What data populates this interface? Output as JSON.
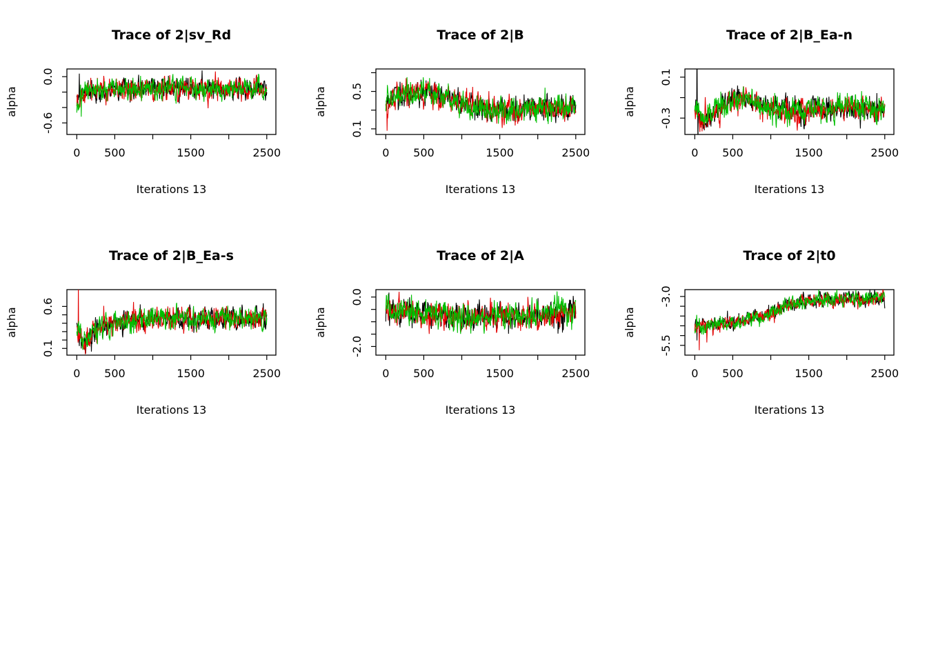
{
  "page": {
    "background": "#ffffff"
  },
  "palette": {
    "chain1": "#000000",
    "chain2": "#e30000",
    "chain3": "#00bf00"
  },
  "chart_data": [
    {
      "type": "line",
      "title": "Trace of 2|sv_Rd",
      "xlabel": "Iterations 13",
      "ylabel": "alpha",
      "xlim": [
        -130,
        2620
      ],
      "ylim": [
        -0.75,
        0.1
      ],
      "grid": false,
      "legend": null,
      "xticks": {
        "values": [
          0,
          500,
          1000,
          1500,
          2000,
          2500
        ],
        "labels": [
          "0",
          "500",
          "",
          "1500",
          "",
          "2500"
        ]
      },
      "yticks": {
        "values": [
          -0.6,
          -0.4,
          -0.2,
          0.0
        ],
        "labels": [
          "-0.6",
          "",
          "",
          "0.0"
        ]
      },
      "mean_path": [
        [
          0,
          -0.3
        ],
        [
          120,
          -0.17
        ],
        [
          1200,
          -0.14
        ],
        [
          2500,
          -0.16
        ]
      ],
      "noise_sd": 0.062,
      "chains": [
        {
          "name": "chain-1",
          "color": "#000000",
          "seed": 11,
          "spikes": [
            [
              35,
              0.04
            ]
          ]
        },
        {
          "name": "chain-2",
          "color": "#e30000",
          "seed": 12,
          "spikes": []
        },
        {
          "name": "chain-3",
          "color": "#00bf00",
          "seed": 13,
          "spikes": [
            [
              60,
              -0.52
            ]
          ]
        }
      ]
    },
    {
      "type": "line",
      "title": "Trace of 2|B",
      "xlabel": "Iterations 13",
      "ylabel": "alpha",
      "xlim": [
        -130,
        2620
      ],
      "ylim": [
        0.04,
        0.74
      ],
      "grid": false,
      "legend": null,
      "xticks": {
        "values": [
          0,
          500,
          1000,
          1500,
          2000,
          2500
        ],
        "labels": [
          "0",
          "500",
          "",
          "1500",
          "",
          "2500"
        ]
      },
      "yticks": {
        "values": [
          0.1,
          0.3,
          0.5,
          0.7
        ],
        "labels": [
          "0.1",
          "",
          "0.5",
          ""
        ]
      },
      "mean_path": [
        [
          0,
          0.4
        ],
        [
          150,
          0.47
        ],
        [
          550,
          0.48
        ],
        [
          950,
          0.4
        ],
        [
          1300,
          0.31
        ],
        [
          1750,
          0.3
        ],
        [
          2100,
          0.34
        ],
        [
          2500,
          0.32
        ]
      ],
      "noise_sd": 0.058,
      "chains": [
        {
          "name": "chain-1",
          "color": "#000000",
          "seed": 21,
          "spikes": []
        },
        {
          "name": "chain-2",
          "color": "#e30000",
          "seed": 22,
          "spikes": [
            [
              15,
              0.08
            ]
          ]
        },
        {
          "name": "chain-3",
          "color": "#00bf00",
          "seed": 23,
          "spikes": []
        }
      ]
    },
    {
      "type": "line",
      "title": "Trace of 2|B_Ea-n",
      "xlabel": "Iterations 13",
      "ylabel": "alpha",
      "xlim": [
        -130,
        2620
      ],
      "ylim": [
        -0.46,
        0.18
      ],
      "grid": false,
      "legend": null,
      "xticks": {
        "values": [
          0,
          500,
          1000,
          1500,
          2000,
          2500
        ],
        "labels": [
          "0",
          "500",
          "",
          "1500",
          "",
          "2500"
        ]
      },
      "yticks": {
        "values": [
          -0.3,
          -0.1,
          0.1
        ],
        "labels": [
          "-0.3",
          "",
          "0.1"
        ]
      },
      "mean_path": [
        [
          0,
          -0.24
        ],
        [
          130,
          -0.31
        ],
        [
          380,
          -0.17
        ],
        [
          650,
          -0.1
        ],
        [
          950,
          -0.2
        ],
        [
          1400,
          -0.23
        ],
        [
          1800,
          -0.19
        ],
        [
          2500,
          -0.21
        ]
      ],
      "noise_sd": 0.055,
      "chains": [
        {
          "name": "chain-1",
          "color": "#000000",
          "seed": 31,
          "spikes": [
            [
              30,
              0.5
            ],
            [
              42,
              -0.6
            ]
          ]
        },
        {
          "name": "chain-2",
          "color": "#e30000",
          "seed": 32,
          "spikes": [
            [
              95,
              -0.43
            ]
          ]
        },
        {
          "name": "chain-3",
          "color": "#00bf00",
          "seed": 33,
          "spikes": []
        }
      ]
    },
    {
      "type": "line",
      "title": "Trace of 2|B_Ea-s",
      "xlabel": "Iterations 13",
      "ylabel": "alpha",
      "xlim": [
        -130,
        2620
      ],
      "ylim": [
        0.02,
        0.8
      ],
      "grid": false,
      "legend": null,
      "xticks": {
        "values": [
          0,
          500,
          1000,
          1500,
          2000,
          2500
        ],
        "labels": [
          "0",
          "500",
          "",
          "1500",
          "",
          "2500"
        ]
      },
      "yticks": {
        "values": [
          0.1,
          0.2,
          0.3,
          0.4,
          0.5,
          0.6
        ],
        "labels": [
          "0.1",
          "",
          "",
          "",
          "",
          "0.6"
        ]
      },
      "mean_path": [
        [
          0,
          0.33
        ],
        [
          95,
          0.16
        ],
        [
          300,
          0.35
        ],
        [
          700,
          0.43
        ],
        [
          1250,
          0.47
        ],
        [
          2000,
          0.45
        ],
        [
          2500,
          0.45
        ]
      ],
      "noise_sd": 0.06,
      "chains": [
        {
          "name": "chain-1",
          "color": "#000000",
          "seed": 41,
          "spikes": [
            [
              60,
              0.1
            ]
          ]
        },
        {
          "name": "chain-2",
          "color": "#e30000",
          "seed": 42,
          "spikes": [
            [
              20,
              0.85
            ]
          ]
        },
        {
          "name": "chain-3",
          "color": "#00bf00",
          "seed": 43,
          "spikes": []
        }
      ]
    },
    {
      "type": "line",
      "title": "Trace of 2|A",
      "xlabel": "Iterations 13",
      "ylabel": "alpha",
      "xlim": [
        -130,
        2620
      ],
      "ylim": [
        -2.35,
        0.3
      ],
      "grid": false,
      "legend": null,
      "xticks": {
        "values": [
          0,
          500,
          1000,
          1500,
          2000,
          2500
        ],
        "labels": [
          "0",
          "500",
          "",
          "1500",
          "",
          "2500"
        ]
      },
      "yticks": {
        "values": [
          -2.0,
          -1.5,
          -1.0,
          -0.5,
          0.0
        ],
        "labels": [
          "-2.0",
          "",
          "",
          "",
          "0.0"
        ]
      },
      "mean_path": [
        [
          0,
          -0.4
        ],
        [
          220,
          -0.55
        ],
        [
          650,
          -0.72
        ],
        [
          1100,
          -0.85
        ],
        [
          1500,
          -0.72
        ],
        [
          1950,
          -0.8
        ],
        [
          2500,
          -0.62
        ]
      ],
      "noise_sd": 0.24,
      "chains": [
        {
          "name": "chain-1",
          "color": "#000000",
          "seed": 51,
          "spikes": [
            [
              40,
              0.18
            ]
          ]
        },
        {
          "name": "chain-2",
          "color": "#e30000",
          "seed": 52,
          "spikes": []
        },
        {
          "name": "chain-3",
          "color": "#00bf00",
          "seed": 53,
          "spikes": []
        }
      ]
    },
    {
      "type": "line",
      "title": "Trace of 2|t0",
      "xlabel": "Iterations 13",
      "ylabel": "alpha",
      "xlim": [
        -130,
        2620
      ],
      "ylim": [
        -6.0,
        -2.65
      ],
      "grid": false,
      "legend": null,
      "xticks": {
        "values": [
          0,
          500,
          1000,
          1500,
          2000,
          2500
        ],
        "labels": [
          "0",
          "500",
          "",
          "1500",
          "",
          "2500"
        ]
      },
      "yticks": {
        "values": [
          -5.5,
          -5.0,
          -4.5,
          -4.0,
          -3.5,
          -3.0
        ],
        "labels": [
          "-5.5",
          "",
          "",
          "",
          "",
          "-3.0"
        ]
      },
      "mean_path": [
        [
          0,
          -4.5
        ],
        [
          260,
          -4.45
        ],
        [
          620,
          -4.25
        ],
        [
          920,
          -3.95
        ],
        [
          1200,
          -3.45
        ],
        [
          1520,
          -3.2
        ],
        [
          1900,
          -3.1
        ],
        [
          2500,
          -3.1
        ]
      ],
      "noise_sd": 0.17,
      "chains": [
        {
          "name": "chain-1",
          "color": "#000000",
          "seed": 61,
          "spikes": [
            [
              30,
              -5.25
            ]
          ]
        },
        {
          "name": "chain-2",
          "color": "#e30000",
          "seed": 62,
          "spikes": [
            [
              60,
              -5.75
            ],
            [
              160,
              -5.35
            ]
          ]
        },
        {
          "name": "chain-3",
          "color": "#00bf00",
          "seed": 63,
          "spikes": []
        }
      ]
    }
  ]
}
